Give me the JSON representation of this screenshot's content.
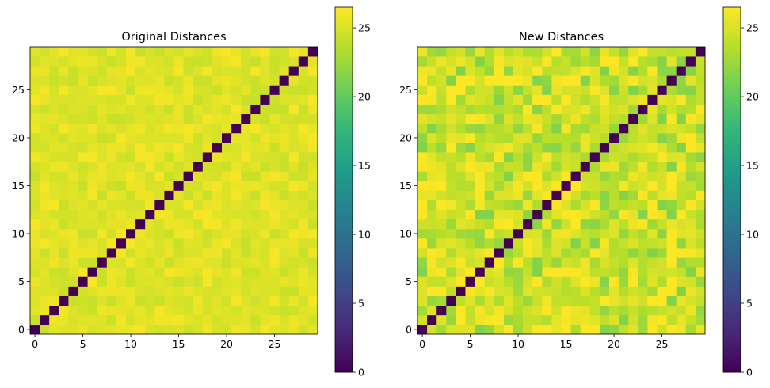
{
  "chart_data": [
    {
      "type": "heatmap",
      "title": "Original Distances",
      "xlabel": "",
      "ylabel": "",
      "n": 30,
      "xlim": [
        -0.5,
        29.5
      ],
      "ylim": [
        -0.5,
        29.5
      ],
      "origin": "lower",
      "x_ticks": [
        0,
        5,
        10,
        15,
        20,
        25
      ],
      "y_ticks": [
        0,
        5,
        10,
        15,
        20,
        25
      ],
      "diagonal_value": 0,
      "off_diagonal_mean": 25.2,
      "off_diagonal_range": [
        24.3,
        26.2
      ],
      "grid": false,
      "colormap": "viridis",
      "colorbar": {
        "min": 0,
        "max": 26.5,
        "ticks": [
          0,
          5,
          10,
          15,
          20,
          25
        ],
        "placement": "right"
      }
    },
    {
      "type": "heatmap",
      "title": "New Distances",
      "xlabel": "",
      "ylabel": "",
      "n": 30,
      "xlim": [
        -0.5,
        29.5
      ],
      "ylim": [
        -0.5,
        29.5
      ],
      "origin": "lower",
      "x_ticks": [
        0,
        5,
        10,
        15,
        20,
        25
      ],
      "y_ticks": [
        0,
        5,
        10,
        15,
        20,
        25
      ],
      "diagonal_value": 0,
      "off_diagonal_mean": 24.3,
      "off_diagonal_range": [
        21.5,
        26.5
      ],
      "grid": false,
      "colormap": "viridis",
      "colorbar": {
        "min": 0,
        "max": 26.5,
        "ticks": [
          0,
          5,
          10,
          15,
          20,
          25
        ],
        "placement": "right"
      }
    }
  ]
}
